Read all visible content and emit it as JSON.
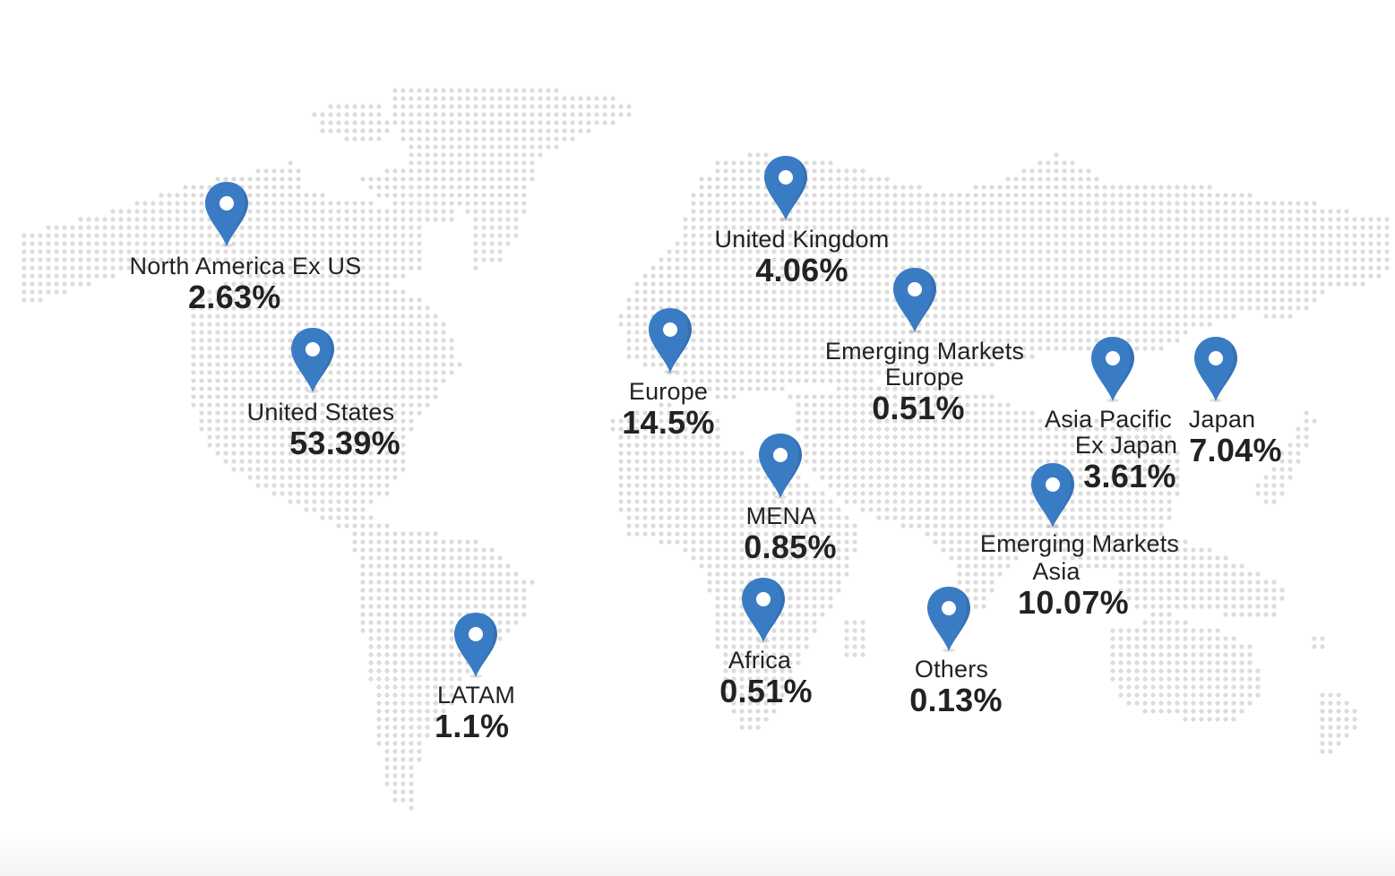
{
  "colors": {
    "dot": "#dcdcdc",
    "pin": "#3a7cc4",
    "pin_shadow": "#2b5f99",
    "text": "#222222"
  },
  "regions": [
    {
      "id": "north-america-ex-us",
      "name": "North America Ex US",
      "value": "2.63%"
    },
    {
      "id": "united-states",
      "name": "United States",
      "value": "53.39%"
    },
    {
      "id": "latam",
      "name": "LATAM",
      "value": "1.1%"
    },
    {
      "id": "united-kingdom",
      "name": "United Kingdom",
      "value": "4.06%"
    },
    {
      "id": "europe",
      "name": "Europe",
      "value": "14.5%"
    },
    {
      "id": "emerging-markets-europe",
      "name_line1": "Emerging Markets",
      "name_line2": "Europe",
      "value": "0.51%"
    },
    {
      "id": "mena",
      "name": "MENA",
      "value": "0.85%"
    },
    {
      "id": "africa",
      "name": "Africa",
      "value": "0.51%"
    },
    {
      "id": "others",
      "name": "Others",
      "value": "0.13%"
    },
    {
      "id": "asia-pacific-ex-japan",
      "name_line1": "Asia Pacific",
      "name_line2": "Ex Japan",
      "value": "3.61%"
    },
    {
      "id": "japan",
      "name": "Japan",
      "value": "7.04%"
    },
    {
      "id": "emerging-markets-asia",
      "name_line1": "Emerging Markets",
      "name_line2": "Asia",
      "value": "10.07%"
    }
  ]
}
